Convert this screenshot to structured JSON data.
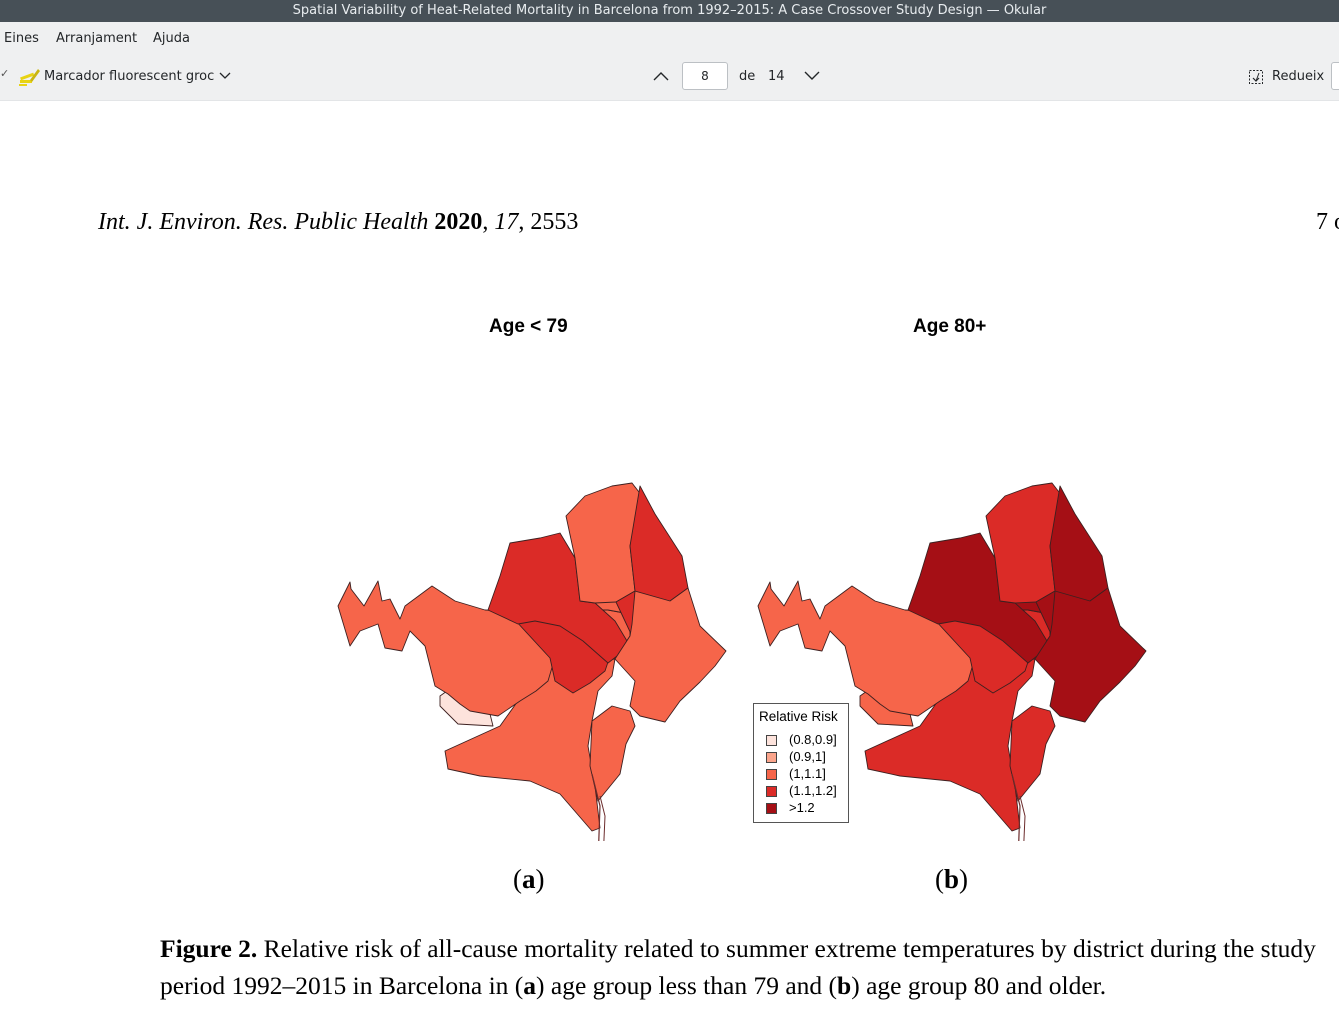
{
  "window": {
    "title": "Spatial Variability of Heat-Related Mortality in Barcelona from 1992–2015: A Case Crossover Study Design — Okular"
  },
  "menu": {
    "items": [
      "Eines",
      "Arranjament",
      "Ajuda"
    ]
  },
  "toolbar": {
    "annotation_tool": "Marcador fluorescent groc",
    "page_current": "8",
    "page_of": "de",
    "page_total": "14",
    "zoom_out_label": "Redueix"
  },
  "document": {
    "journal": "Int. J. Environ. Res. Public Health",
    "year": "2020",
    "volume": "17",
    "article": "2553",
    "page_label": "7 o",
    "figure": {
      "panel_a_title": "Age < 79",
      "panel_b_title": "Age 80+",
      "panel_a_label": "a",
      "panel_b_label": "b",
      "legend": {
        "title": "Relative Risk",
        "entries": [
          {
            "label": "(0.8,0.9]",
            "color": "#fde3dc"
          },
          {
            "label": "(0.9,1]",
            "color": "#fba58c"
          },
          {
            "label": "(1,1.1]",
            "color": "#f6654a"
          },
          {
            "label": "(1.1,1.2]",
            "color": "#db2b27"
          },
          {
            "label": ">1.2",
            "color": "#a50f15"
          }
        ]
      },
      "caption": {
        "label": "Figure 2.",
        "text_1": " Relative risk of all-cause mortality related to summer extreme temperatures by district during the study period 1992–2015 in Barcelona in (",
        "a": "a",
        "text_2": ") age group less than 79 and (",
        "b": "b",
        "text_3": ") age group 80 and older."
      }
    }
  },
  "colors": {
    "titlebar": "#475057",
    "toolbar": "#eff0f1",
    "risk_0_8_0_9": "#fde3dc",
    "risk_1_1_1": "#f6654a",
    "risk_1_1_1_2": "#db2b27",
    "risk_gt_1_2": "#a50f15"
  }
}
